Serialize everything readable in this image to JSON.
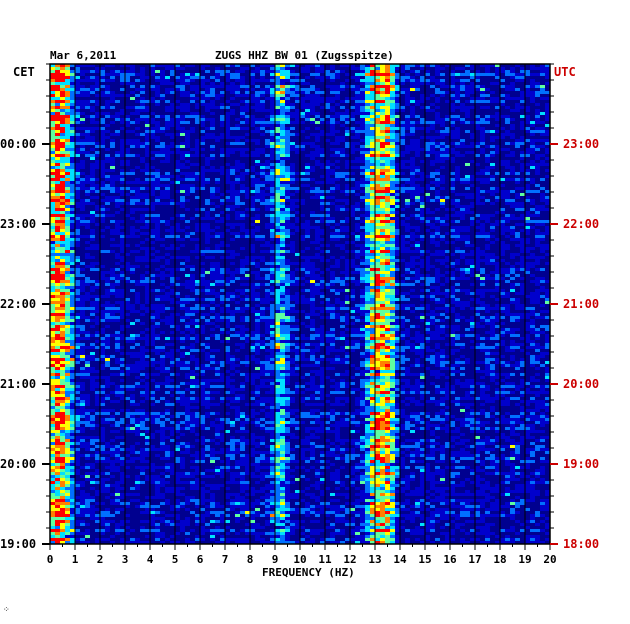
{
  "chart_data": {
    "type": "heatmap",
    "title_date": "Mar 6,2011",
    "title_station": "ZUGS HHZ BW 01 (Zugsspitze)",
    "left_axis_label": "CET",
    "right_axis_label": "UTC",
    "xlabel": "FREQUENCY (HZ)",
    "x_ticks": [
      "0",
      "1",
      "2",
      "3",
      "4",
      "5",
      "6",
      "7",
      "8",
      "9",
      "10",
      "11",
      "12",
      "13",
      "14",
      "15",
      "16",
      "17",
      "18",
      "19",
      "20"
    ],
    "xlim": [
      0,
      20
    ],
    "left_time_labels": [
      "00:00",
      "23:00",
      "22:00",
      "21:00",
      "20:00",
      "19:00"
    ],
    "right_time_labels": [
      "23:00",
      "22:00",
      "21:00",
      "20:00",
      "19:00",
      "18:00"
    ],
    "left_label_color": "#000000",
    "right_label_color": "#cc0000",
    "background_color": "#0000cc",
    "colormap": [
      "#00008f",
      "#0000ff",
      "#0070ff",
      "#00e0ff",
      "#60ff9f",
      "#ffff00",
      "#ff8000",
      "#ff0000"
    ],
    "energy_bands_hz": [
      {
        "center": 0.35,
        "width": 0.5,
        "level": "very high"
      },
      {
        "center": 9.2,
        "width": 0.3,
        "level": "moderate"
      },
      {
        "center": 13.0,
        "width": 0.35,
        "level": "high"
      },
      {
        "center": 13.5,
        "width": 0.3,
        "level": "high"
      }
    ]
  },
  "footer_mark": "⁘"
}
